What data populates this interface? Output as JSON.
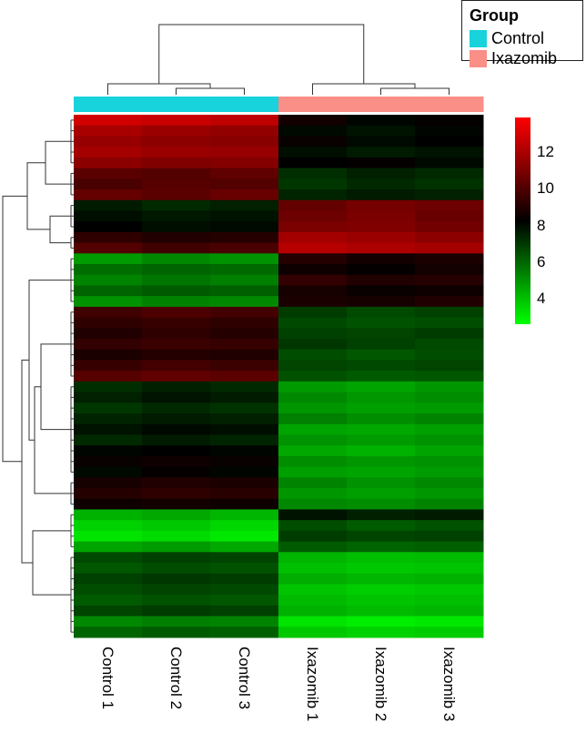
{
  "chart_data": {
    "type": "heatmap",
    "title": "",
    "columns": [
      "Control 1",
      "Control 2",
      "Control 3",
      "Ixazomib 1",
      "Ixazomib 2",
      "Ixazomib 3"
    ],
    "column_groups": [
      "Control",
      "Control",
      "Control",
      "Ixazomib",
      "Ixazomib",
      "Ixazomib"
    ],
    "legend": {
      "title": "Group",
      "entries": [
        {
          "label": "Control",
          "color": "#18d2dc"
        },
        {
          "label": "Ixazomib",
          "color": "#fa8f88"
        }
      ],
      "placement": "top-right"
    },
    "colorbar": {
      "range": [
        2.6,
        13.8
      ],
      "ticks": [
        12,
        10,
        8,
        6,
        4
      ],
      "low_color": "#00ff00",
      "mid_color": "#000000",
      "high_color": "#ff0000",
      "mid_value": 8.2
    },
    "rows": [
      [
        12.8,
        12.6,
        12.4,
        8.6,
        8.1,
        8.3
      ],
      [
        11.9,
        11.6,
        11.4,
        8.0,
        7.8,
        8.1
      ],
      [
        11.5,
        11.3,
        11.2,
        8.4,
        8.0,
        8.2
      ],
      [
        11.8,
        11.6,
        11.5,
        7.9,
        7.6,
        7.8
      ],
      [
        11.3,
        11.0,
        11.1,
        8.2,
        8.3,
        8.0
      ],
      [
        10.2,
        10.0,
        10.3,
        7.2,
        7.5,
        7.3
      ],
      [
        9.8,
        10.1,
        10.0,
        7.0,
        7.3,
        7.1
      ],
      [
        10.4,
        10.2,
        10.5,
        7.4,
        7.6,
        7.5
      ],
      [
        7.6,
        7.3,
        7.5,
        10.4,
        10.8,
        10.6
      ],
      [
        7.9,
        7.7,
        7.8,
        10.6,
        10.9,
        10.5
      ],
      [
        8.2,
        7.9,
        8.0,
        10.9,
        11.0,
        10.7
      ],
      [
        9.2,
        8.9,
        9.0,
        11.8,
        11.6,
        11.3
      ],
      [
        10.0,
        9.6,
        9.8,
        12.2,
        12.0,
        11.8
      ],
      [
        4.8,
        5.2,
        5.0,
        9.0,
        8.6,
        8.8
      ],
      [
        5.8,
        6.0,
        5.9,
        8.5,
        8.3,
        8.6
      ],
      [
        5.3,
        5.6,
        5.4,
        9.3,
        8.9,
        9.0
      ],
      [
        6.0,
        6.2,
        6.1,
        8.7,
        8.4,
        8.5
      ],
      [
        5.0,
        5.3,
        5.2,
        8.8,
        8.7,
        8.9
      ],
      [
        9.6,
        9.9,
        9.7,
        6.9,
        6.6,
        6.8
      ],
      [
        9.2,
        9.4,
        9.2,
        6.6,
        6.4,
        6.5
      ],
      [
        8.9,
        9.2,
        9.0,
        6.8,
        6.7,
        6.9
      ],
      [
        9.3,
        9.5,
        9.4,
        7.0,
        6.8,
        6.6
      ],
      [
        8.8,
        9.0,
        8.9,
        6.5,
        6.3,
        6.5
      ],
      [
        9.4,
        9.7,
        9.5,
        6.7,
        6.6,
        6.7
      ],
      [
        10.1,
        10.3,
        10.2,
        6.4,
        6.2,
        6.3
      ],
      [
        7.2,
        7.5,
        7.3,
        4.8,
        4.6,
        4.9
      ],
      [
        7.5,
        7.8,
        7.6,
        5.2,
        4.9,
        5.1
      ],
      [
        7.0,
        7.3,
        7.1,
        4.9,
        4.7,
        4.8
      ],
      [
        7.4,
        7.6,
        7.5,
        5.4,
        5.1,
        5.3
      ],
      [
        7.8,
        8.0,
        7.9,
        4.6,
        4.5,
        4.7
      ],
      [
        7.3,
        7.6,
        7.4,
        5.0,
        4.8,
        5.0
      ],
      [
        8.1,
        8.2,
        8.1,
        4.5,
        4.3,
        4.6
      ],
      [
        8.4,
        8.5,
        8.4,
        5.1,
        4.9,
        5.0
      ],
      [
        8.0,
        8.3,
        8.1,
        4.7,
        4.6,
        4.8
      ],
      [
        8.7,
        8.9,
        8.8,
        5.3,
        5.0,
        5.2
      ],
      [
        9.0,
        9.2,
        9.1,
        4.9,
        4.7,
        4.9
      ],
      [
        8.5,
        8.6,
        8.5,
        5.2,
        5.1,
        5.3
      ],
      [
        4.3,
        4.5,
        4.2,
        7.8,
        7.5,
        7.6
      ],
      [
        3.6,
        3.8,
        3.5,
        6.5,
        6.2,
        6.4
      ],
      [
        3.2,
        3.4,
        3.1,
        6.9,
        6.7,
        6.8
      ],
      [
        4.6,
        4.8,
        4.5,
        6.2,
        6.0,
        6.1
      ],
      [
        6.6,
        6.8,
        6.7,
        4.2,
        4.0,
        4.1
      ],
      [
        6.3,
        6.5,
        6.4,
        4.0,
        3.8,
        3.9
      ],
      [
        6.8,
        7.0,
        6.9,
        4.4,
        4.2,
        4.3
      ],
      [
        6.5,
        6.7,
        6.6,
        3.9,
        3.7,
        3.8
      ],
      [
        6.2,
        6.4,
        6.3,
        4.1,
        3.9,
        4.0
      ],
      [
        6.7,
        6.9,
        6.8,
        4.3,
        4.1,
        4.2
      ],
      [
        5.2,
        5.4,
        5.3,
        3.2,
        3.0,
        3.1
      ],
      [
        6.0,
        6.2,
        6.1,
        3.8,
        3.6,
        3.7
      ]
    ]
  }
}
